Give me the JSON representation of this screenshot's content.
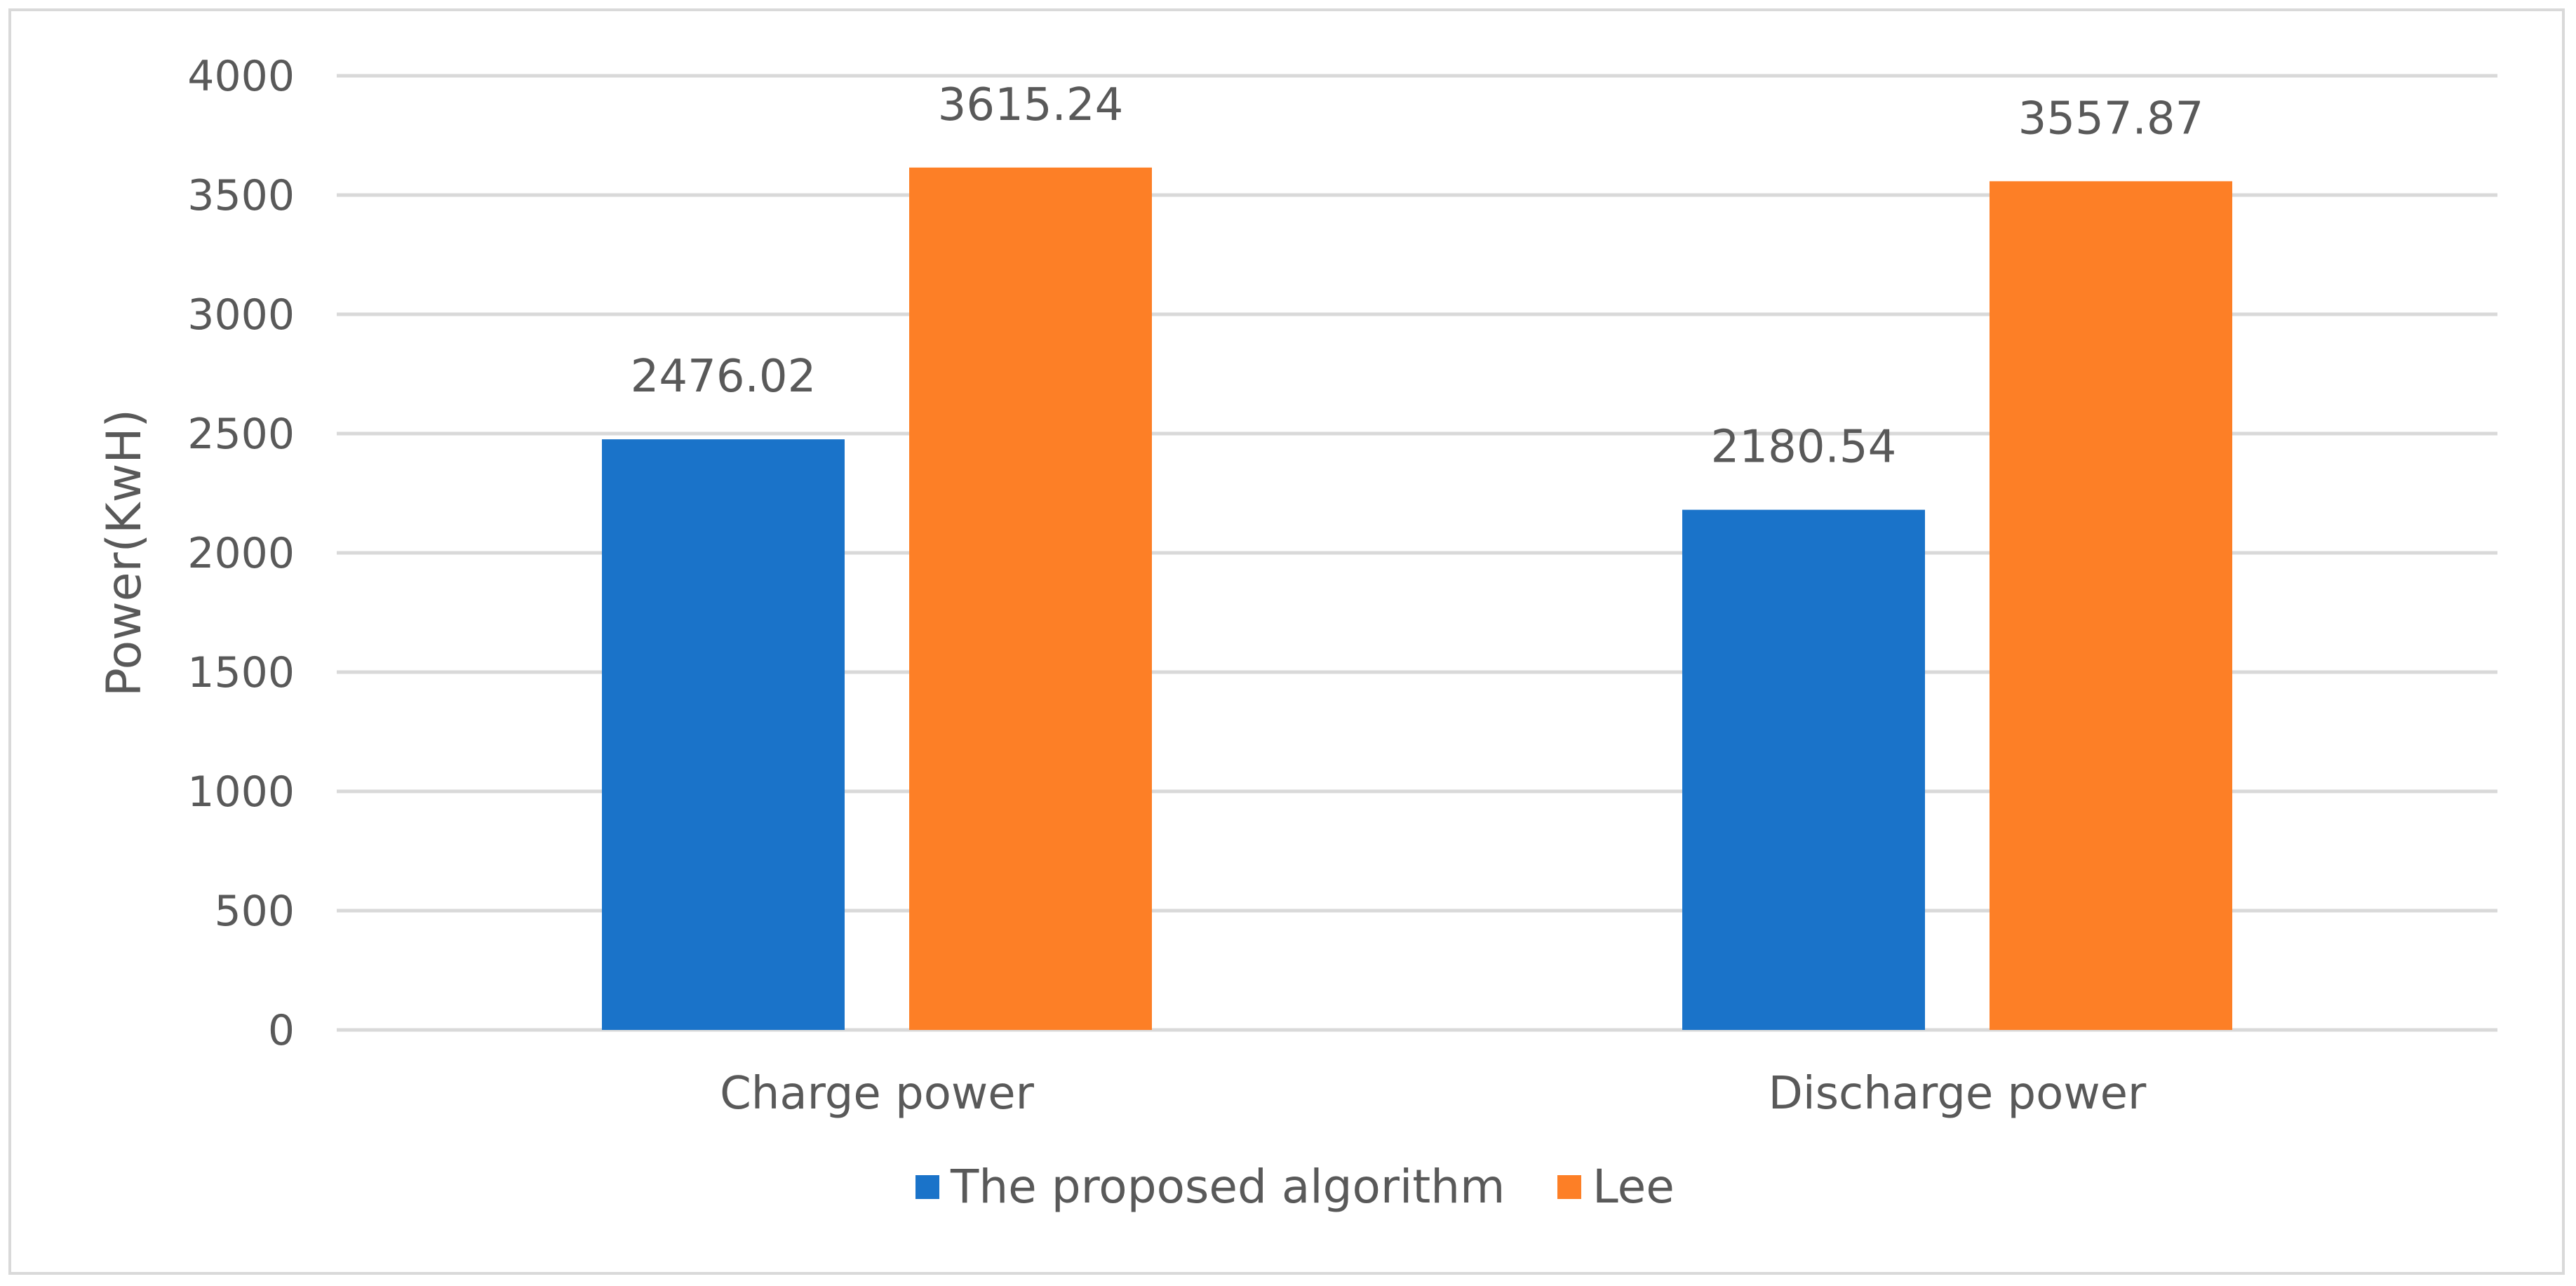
{
  "chart_data": {
    "type": "bar",
    "title": "",
    "xlabel": "",
    "ylabel": "Power(KwH)",
    "ylim": [
      0,
      4000
    ],
    "yticks": [
      0,
      500,
      1000,
      1500,
      2000,
      2500,
      3000,
      3500,
      4000
    ],
    "grid": true,
    "legend_position": "bottom",
    "categories": [
      "Charge power",
      "Discharge power"
    ],
    "series": [
      {
        "name": "The proposed algorithm",
        "color": "#1a73c9",
        "values": [
          2476.02,
          2180.54
        ],
        "labels": [
          "2476.02",
          "2180.54"
        ]
      },
      {
        "name": "Lee",
        "color": "#fd7f26",
        "values": [
          3615.24,
          3557.87
        ],
        "labels": [
          "3615.24",
          "3557.87"
        ]
      }
    ]
  }
}
